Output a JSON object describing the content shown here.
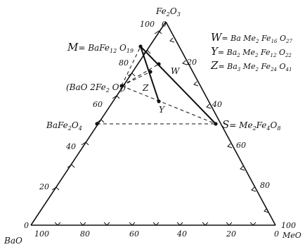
{
  "vertices": {
    "top": {
      "label": "Fe",
      "sub1": "2",
      "mid": "O",
      "sub2": "3"
    },
    "left": {
      "label": "BaO"
    },
    "right": {
      "label": "MeO"
    }
  },
  "scale_left": [
    "0",
    "20",
    "40",
    "60",
    "80",
    "100"
  ],
  "scale_right": [
    "100",
    "80",
    "60",
    "40",
    "20",
    "0"
  ],
  "scale_bottom": [
    "100",
    "80",
    "60",
    "40",
    "20",
    "0"
  ],
  "top_zero": "0",
  "legend": {
    "w": {
      "letter": "W",
      "rest": "= Ba Me",
      "s1": "2",
      "f": " Fe",
      "s2": "16",
      "o": " O",
      "s3": "27"
    },
    "y": {
      "letter": "Y",
      "rest": "= Ba",
      "s0": "2",
      "me": " Me",
      "s1": "2",
      "f": " Fe",
      "s2": "12",
      "o": " O",
      "s3": "22"
    },
    "z": {
      "letter": "Z",
      "rest": "= Ba",
      "s0": "3",
      "me": " Me",
      "s1": "2",
      "f": " Fe",
      "s2": "24",
      "o": " O",
      "s3": "41"
    }
  },
  "phases": {
    "M": {
      "prefix": "M",
      "eq": "= BaFe",
      "s1": "12",
      "o": " O",
      "s2": "19"
    },
    "BaO2Fe2O3": {
      "text1": "(BaO 2Fe",
      "s1": "2",
      "text2": " O",
      "s2": "3",
      "text3": ")"
    },
    "BaFe2O4": {
      "text1": "BaFe",
      "s1": "2",
      "text2": "O",
      "s2": "4"
    },
    "S": {
      "prefix": "S",
      "eq": "= Me",
      "s1": "2",
      "f": "Fe",
      "s2": "4",
      "o": "O",
      "s3": "8"
    },
    "W": "W",
    "Z": "Z",
    "Y": "Y"
  }
}
